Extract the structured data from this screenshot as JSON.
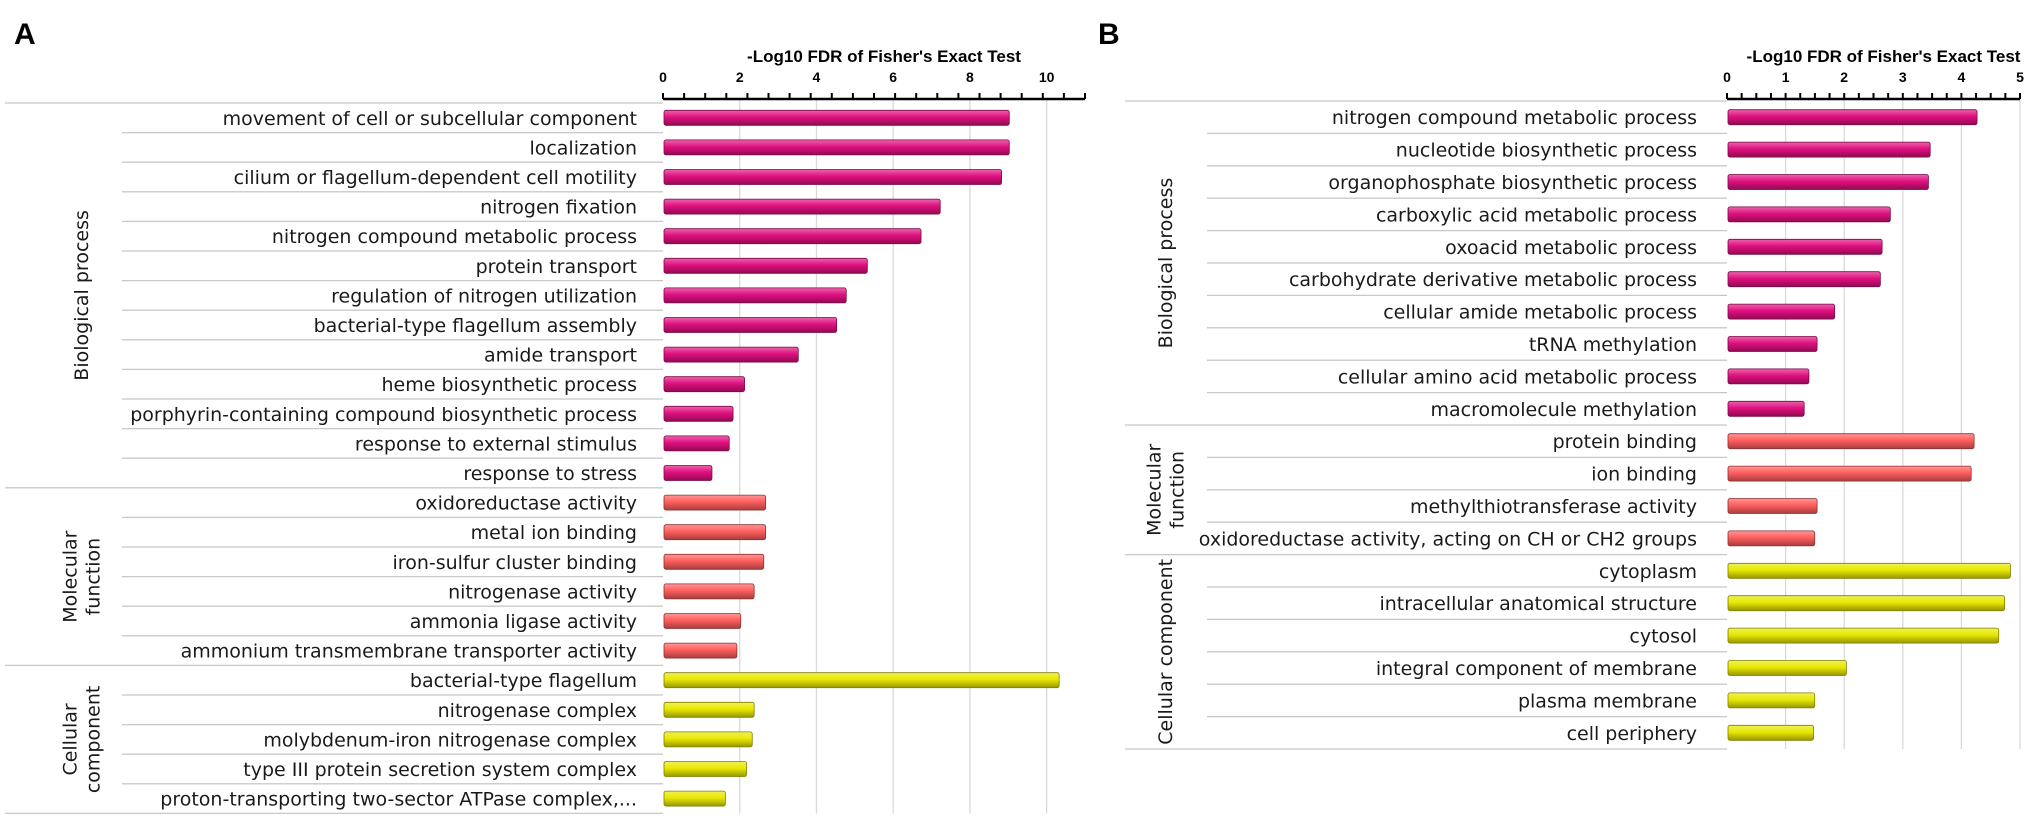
{
  "chart_data": [
    {
      "panel": "A",
      "type": "bar",
      "orientation": "horizontal",
      "xlabel": "-Log10 FDR of Fisher's Exact Test",
      "xlim": [
        0,
        11
      ],
      "ticks": [
        0,
        2,
        4,
        6,
        8,
        10
      ],
      "grid": true,
      "groups": [
        {
          "name": "Biological process",
          "label_lines": [
            "Biological process"
          ],
          "color": "#e0107f",
          "items": [
            {
              "label": "movement of cell or subcellular component",
              "value": 9.0
            },
            {
              "label": "localization",
              "value": 9.0
            },
            {
              "label": "cilium or flagellum-dependent cell motility",
              "value": 8.8
            },
            {
              "label": "nitrogen fixation",
              "value": 7.2
            },
            {
              "label": "nitrogen compound metabolic process",
              "value": 6.7
            },
            {
              "label": "protein transport",
              "value": 5.3
            },
            {
              "label": "regulation of nitrogen utilization",
              "value": 4.75
            },
            {
              "label": "bacterial-type flagellum assembly",
              "value": 4.5
            },
            {
              "label": "amide transport",
              "value": 3.5
            },
            {
              "label": "heme biosynthetic process",
              "value": 2.1
            },
            {
              "label": "porphyrin-containing compound biosynthetic process",
              "value": 1.8
            },
            {
              "label": "response to external stimulus",
              "value": 1.7
            },
            {
              "label": "response to stress",
              "value": 1.25
            }
          ]
        },
        {
          "name": "Molecular function",
          "label_lines": [
            "Molecular",
            "function"
          ],
          "color": "#ff5e5e",
          "items": [
            {
              "label": "oxidoreductase activity",
              "value": 2.65
            },
            {
              "label": "metal ion binding",
              "value": 2.65
            },
            {
              "label": "iron-sulfur cluster binding",
              "value": 2.6
            },
            {
              "label": "nitrogenase activity",
              "value": 2.35
            },
            {
              "label": "ammonia ligase activity",
              "value": 2.0
            },
            {
              "label": "ammonium transmembrane transporter activity",
              "value": 1.9
            }
          ]
        },
        {
          "name": "Cellular component",
          "label_lines": [
            "Cellular",
            "component"
          ],
          "color": "#e8e800",
          "items": [
            {
              "label": "bacterial-type flagellum",
              "value": 10.3
            },
            {
              "label": "nitrogenase complex",
              "value": 2.35
            },
            {
              "label": "molybdenum-iron nitrogenase complex",
              "value": 2.3
            },
            {
              "label": "type III protein secretion system complex",
              "value": 2.15
            },
            {
              "label": "proton-transporting two-sector ATPase complex,...",
              "value": 1.6
            }
          ]
        }
      ]
    },
    {
      "panel": "B",
      "type": "bar",
      "orientation": "horizontal",
      "xlabel": "-Log10 FDR of Fisher's Exact Test",
      "xlim": [
        0,
        5
      ],
      "ticks": [
        0,
        1,
        2,
        3,
        4,
        5
      ],
      "grid": true,
      "groups": [
        {
          "name": "Biological process",
          "label_lines": [
            "Biological process"
          ],
          "color": "#e0107f",
          "items": [
            {
              "label": "nitrogen compound metabolic process",
              "value": 4.25
            },
            {
              "label": "nucleotide biosynthetic process",
              "value": 3.45
            },
            {
              "label": "organophosphate biosynthetic process",
              "value": 3.42
            },
            {
              "label": "carboxylic acid metabolic process",
              "value": 2.77
            },
            {
              "label": "oxoacid metabolic process",
              "value": 2.63
            },
            {
              "label": "carbohydrate derivative metabolic process",
              "value": 2.6
            },
            {
              "label": "cellular amide metabolic process",
              "value": 1.82
            },
            {
              "label": "tRNA methylation",
              "value": 1.52
            },
            {
              "label": "cellular amino acid metabolic process",
              "value": 1.38
            },
            {
              "label": "macromolecule methylation",
              "value": 1.3
            }
          ]
        },
        {
          "name": "Molecular function",
          "label_lines": [
            "Molecular",
            "function"
          ],
          "color": "#ff5e5e",
          "items": [
            {
              "label": "protein binding",
              "value": 4.2
            },
            {
              "label": "ion binding",
              "value": 4.15
            },
            {
              "label": "methylthiotransferase activity",
              "value": 1.52
            },
            {
              "label": "oxidoreductase activity, acting on CH or CH2 groups",
              "value": 1.48
            }
          ]
        },
        {
          "name": "Cellular component",
          "label_lines": [
            "Cellular component"
          ],
          "color": "#e8e800",
          "items": [
            {
              "label": "cytoplasm",
              "value": 4.82
            },
            {
              "label": "intracellular anatomical structure",
              "value": 4.72
            },
            {
              "label": "cytosol",
              "value": 4.62
            },
            {
              "label": "integral component of membrane",
              "value": 2.02
            },
            {
              "label": "plasma membrane",
              "value": 1.48
            },
            {
              "label": "cell periphery",
              "value": 1.46
            }
          ]
        }
      ]
    }
  ]
}
